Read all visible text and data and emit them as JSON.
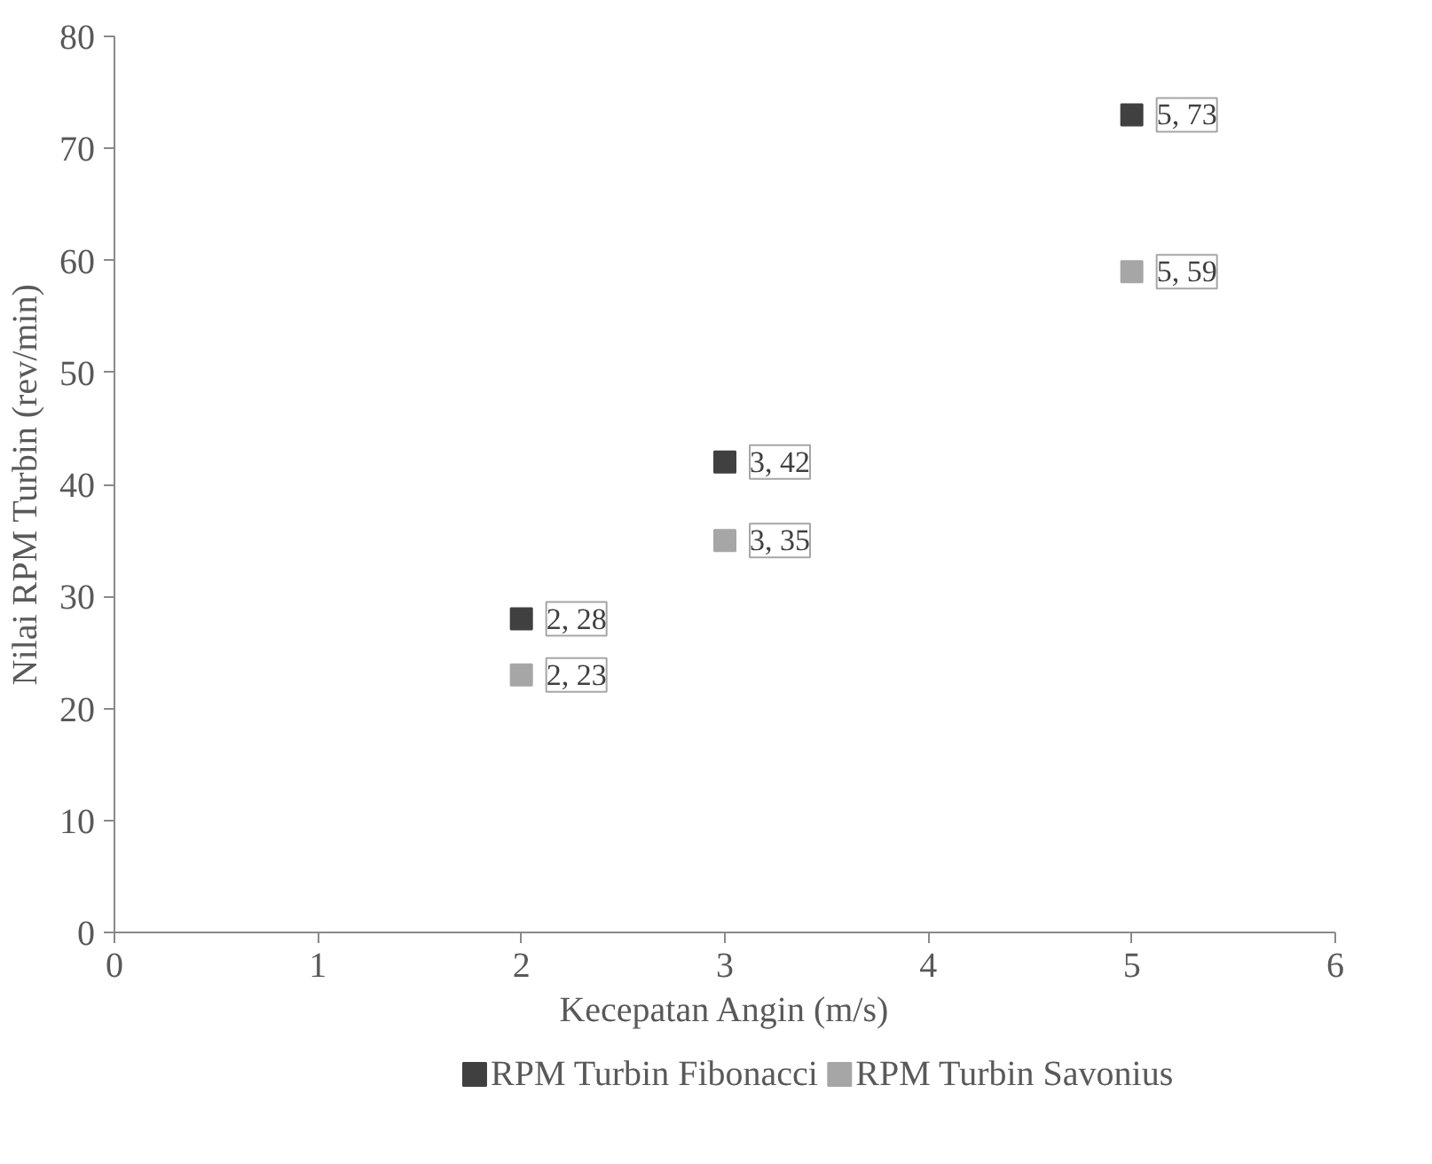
{
  "chart_data": {
    "type": "scatter",
    "xlabel": "Kecepatan Angin (m/s)",
    "ylabel": "Nilai RPM Turbin (rev/min)",
    "xlim": [
      0,
      6
    ],
    "xticks": [
      0,
      1,
      2,
      3,
      4,
      5,
      6
    ],
    "ylim": [
      0,
      80
    ],
    "yticks": [
      0,
      10,
      20,
      30,
      40,
      50,
      60,
      70,
      80
    ],
    "grid": false,
    "legend": "bottom",
    "marker": "square",
    "series": [
      {
        "name": "RPM Turbin Fibonacci",
        "color": "#404040",
        "x": [
          2,
          3,
          5
        ],
        "values": [
          28,
          42,
          73
        ],
        "value_labels": [
          "2, 28",
          "3, 42",
          "5, 73"
        ]
      },
      {
        "name": "RPM Turbin Savonius",
        "color": "#a6a6a6",
        "x": [
          2,
          3,
          5
        ],
        "values": [
          23,
          35,
          59
        ],
        "value_labels": [
          "2, 23",
          "3, 35",
          "5, 59"
        ]
      }
    ]
  }
}
